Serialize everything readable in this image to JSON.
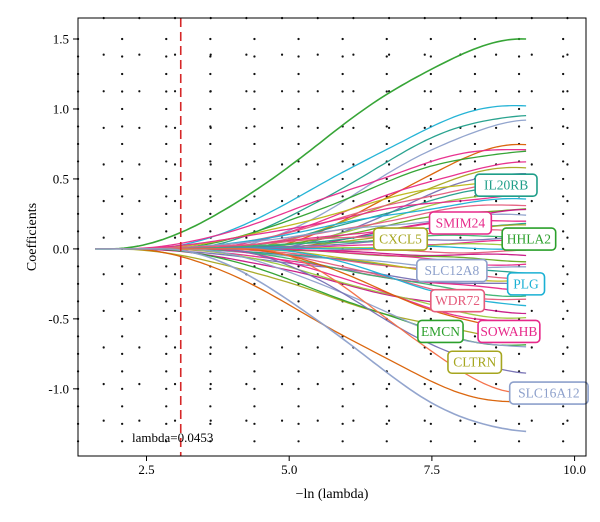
{
  "chart_data": {
    "type": "line",
    "xlabel": "−ln (lambda)",
    "ylabel": "Coefficients",
    "xlim": [
      1.3,
      10.2
    ],
    "ylim": [
      -1.48,
      1.65
    ],
    "xticks": [
      "2.5",
      "5.0",
      "7.5",
      "10.0"
    ],
    "xtick_values": [
      2.5,
      5.0,
      7.5,
      10.0
    ],
    "yticks": [
      "1.5",
      "1.0",
      "0.5",
      "0.0",
      "-0.5",
      "-1.0"
    ],
    "ytick_values": [
      1.5,
      1.0,
      0.5,
      0.0,
      -0.5,
      -1.0
    ],
    "grid": "dotted",
    "x_start": 1.6,
    "x_end": 9.15,
    "lambda_line_x": 3.1,
    "lambda_label": "lambda=0.0453",
    "lambda_color": "#d62728",
    "palette": [
      "#1f9e89",
      "#e7298a",
      "#9ac93c",
      "#7570b3",
      "#d95f02",
      "#a6a61f",
      "#1ab0d4",
      "#e55c7c",
      "#2ca02c",
      "#8da0cb",
      "#66a61e",
      "#f46d43",
      "#3cb371",
      "#c71585",
      "#bdb716"
    ],
    "paths": [
      {
        "final": 1.49,
        "color": "#2ca02c",
        "w": 1.6
      },
      {
        "final": 1.03,
        "color": "#1ab0d4"
      },
      {
        "final": 0.96,
        "color": "#1f9e89"
      },
      {
        "final": 0.91,
        "color": "#8da0cb"
      },
      {
        "final": 0.74,
        "color": "#d95f02"
      },
      {
        "final": 0.72,
        "color": "#e7298a"
      },
      {
        "final": 0.7,
        "color": "#2ca02c"
      },
      {
        "final": 0.61,
        "color": "#e7298a"
      },
      {
        "final": 0.58,
        "color": "#a6a61f"
      },
      {
        "final": 0.55,
        "color": "#7570b3"
      },
      {
        "final": 0.5,
        "color": "#bdb716"
      },
      {
        "final": 0.47,
        "color": "#e55c7c"
      },
      {
        "final": 0.44,
        "color": "#1f9e89"
      },
      {
        "final": 0.41,
        "color": "#9ac93c"
      },
      {
        "final": 0.38,
        "color": "#e7298a"
      },
      {
        "final": 0.35,
        "color": "#1ab0d4"
      },
      {
        "final": 0.32,
        "color": "#e55c7c"
      },
      {
        "final": 0.29,
        "color": "#66a61e"
      },
      {
        "final": 0.27,
        "color": "#c71585"
      },
      {
        "final": 0.24,
        "color": "#8da0cb"
      },
      {
        "final": 0.21,
        "color": "#e7298a"
      },
      {
        "final": 0.18,
        "color": "#1f9e89"
      },
      {
        "final": 0.16,
        "color": "#a6a61f"
      },
      {
        "final": 0.13,
        "color": "#e55c7c"
      },
      {
        "final": 0.1,
        "color": "#3cb371"
      },
      {
        "final": 0.08,
        "color": "#7570b3"
      },
      {
        "final": 0.05,
        "color": "#e7298a"
      },
      {
        "final": 0.03,
        "color": "#9ac93c"
      },
      {
        "final": 0.01,
        "color": "#1ab0d4"
      },
      {
        "final": -0.02,
        "color": "#e55c7c"
      },
      {
        "final": -0.05,
        "color": "#c71585"
      },
      {
        "final": -0.08,
        "color": "#66a61e"
      },
      {
        "final": -0.11,
        "color": "#e7298a"
      },
      {
        "final": -0.14,
        "color": "#8da0cb"
      },
      {
        "final": -0.17,
        "color": "#1f9e89"
      },
      {
        "final": -0.2,
        "color": "#e55c7c"
      },
      {
        "final": -0.23,
        "color": "#bdb716"
      },
      {
        "final": -0.26,
        "color": "#7570b3"
      },
      {
        "final": -0.29,
        "color": "#e7298a"
      },
      {
        "final": -0.33,
        "color": "#3cb371"
      },
      {
        "final": -0.37,
        "color": "#e55c7c"
      },
      {
        "final": -0.41,
        "color": "#1ab0d4"
      },
      {
        "final": -0.45,
        "color": "#c71585"
      },
      {
        "final": -0.49,
        "color": "#9ac93c"
      },
      {
        "final": -0.53,
        "color": "#e7298a"
      },
      {
        "final": -0.58,
        "color": "#d95f02"
      },
      {
        "final": -0.63,
        "color": "#a6a61f"
      },
      {
        "final": -0.69,
        "color": "#2ca02c"
      },
      {
        "final": -0.71,
        "color": "#8da0cb"
      },
      {
        "final": -0.88,
        "color": "#7570b3"
      },
      {
        "final": -1.02,
        "color": "#f46d43"
      },
      {
        "final": -1.1,
        "color": "#d95f02"
      },
      {
        "final": -1.31,
        "color": "#8da0cb",
        "w": 1.6
      }
    ],
    "labels": [
      {
        "text": "IL20RB",
        "x": 8.8,
        "y": 0.455,
        "color": "#1f9e89"
      },
      {
        "text": "SMIM24",
        "x": 8.0,
        "y": 0.185,
        "color": "#e7298a"
      },
      {
        "text": "CXCL5",
        "x": 6.95,
        "y": 0.07,
        "color": "#a6a61f"
      },
      {
        "text": "HHLA2",
        "x": 9.2,
        "y": 0.07,
        "color": "#2ca02c"
      },
      {
        "text": "SLC12A8",
        "x": 7.85,
        "y": -0.155,
        "color": "#8da0cb"
      },
      {
        "text": "PLG",
        "x": 9.15,
        "y": -0.25,
        "color": "#1ab0d4"
      },
      {
        "text": "WDR72",
        "x": 7.95,
        "y": -0.37,
        "color": "#e55c7c"
      },
      {
        "text": "EMCN",
        "x": 7.65,
        "y": -0.59,
        "color": "#2ca02c"
      },
      {
        "text": "SOWAHB",
        "x": 8.85,
        "y": -0.59,
        "color": "#e7298a"
      },
      {
        "text": "CLTRN",
        "x": 8.25,
        "y": -0.81,
        "color": "#a6a61f"
      },
      {
        "text": "SLC16A12",
        "x": 9.55,
        "y": -1.03,
        "color": "#8da0cb"
      }
    ]
  }
}
